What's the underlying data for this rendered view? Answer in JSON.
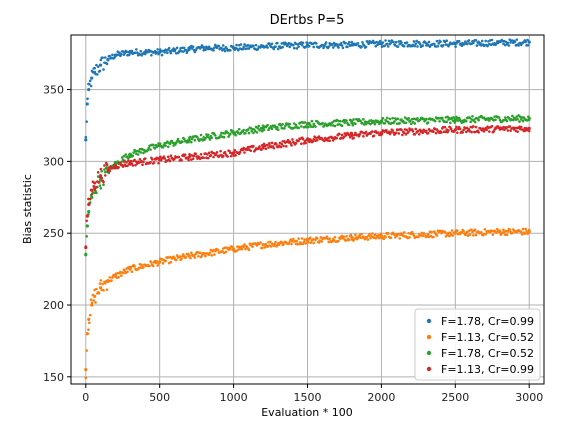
{
  "chart_data": {
    "type": "scatter",
    "title": "DErtbs P=5",
    "xlabel": "Evaluation * 100",
    "ylabel": "Bias statistic",
    "xlim": [
      -100,
      3100
    ],
    "ylim": [
      145,
      388
    ],
    "xticks": [
      0,
      500,
      1000,
      1500,
      2000,
      2500,
      3000
    ],
    "yticks": [
      150,
      200,
      250,
      300,
      350
    ],
    "grid": true,
    "legend_position": "bottom-right",
    "series": [
      {
        "name": "F=1.78, Cr=0.99",
        "color": "#1f77b4",
        "x": [
          0,
          10,
          20,
          40,
          60,
          100,
          150,
          200,
          300,
          400,
          500,
          600,
          700,
          800,
          1000,
          1200,
          1500,
          1800,
          2000,
          2500,
          3000
        ],
        "y": [
          315,
          340,
          350,
          358,
          362,
          367,
          371,
          374,
          376,
          376,
          376,
          377,
          378,
          379,
          379,
          380,
          381,
          381,
          382,
          382,
          383
        ]
      },
      {
        "name": "F=1.13, Cr=0.52",
        "color": "#ff7f0e",
        "x": [
          0,
          10,
          20,
          40,
          60,
          100,
          150,
          200,
          300,
          500,
          700,
          1000,
          1200,
          1500,
          1800,
          2000,
          2500,
          2800,
          3000
        ],
        "y": [
          155,
          180,
          190,
          200,
          206,
          212,
          217,
          220,
          225,
          230,
          234,
          239,
          242,
          245,
          247,
          248,
          250,
          251,
          251
        ]
      },
      {
        "name": "F=1.78, Cr=0.52",
        "color": "#2ca02c",
        "x": [
          0,
          10,
          20,
          40,
          60,
          100,
          150,
          200,
          300,
          500,
          700,
          1000,
          1200,
          1500,
          1800,
          2000,
          2500,
          3000
        ],
        "y": [
          235,
          255,
          265,
          275,
          281,
          287,
          293,
          298,
          305,
          311,
          315,
          320,
          323,
          326,
          327,
          328,
          329,
          330
        ]
      },
      {
        "name": "F=1.13, Cr=0.99",
        "color": "#d62728",
        "x": [
          0,
          10,
          20,
          40,
          60,
          100,
          150,
          200,
          300,
          500,
          700,
          1000,
          1200,
          1500,
          1800,
          2000,
          2500,
          3000
        ],
        "y": [
          240,
          262,
          270,
          280,
          285,
          290,
          294,
          297,
          299,
          301,
          303,
          306,
          310,
          315,
          318,
          320,
          322,
          323
        ]
      }
    ]
  }
}
